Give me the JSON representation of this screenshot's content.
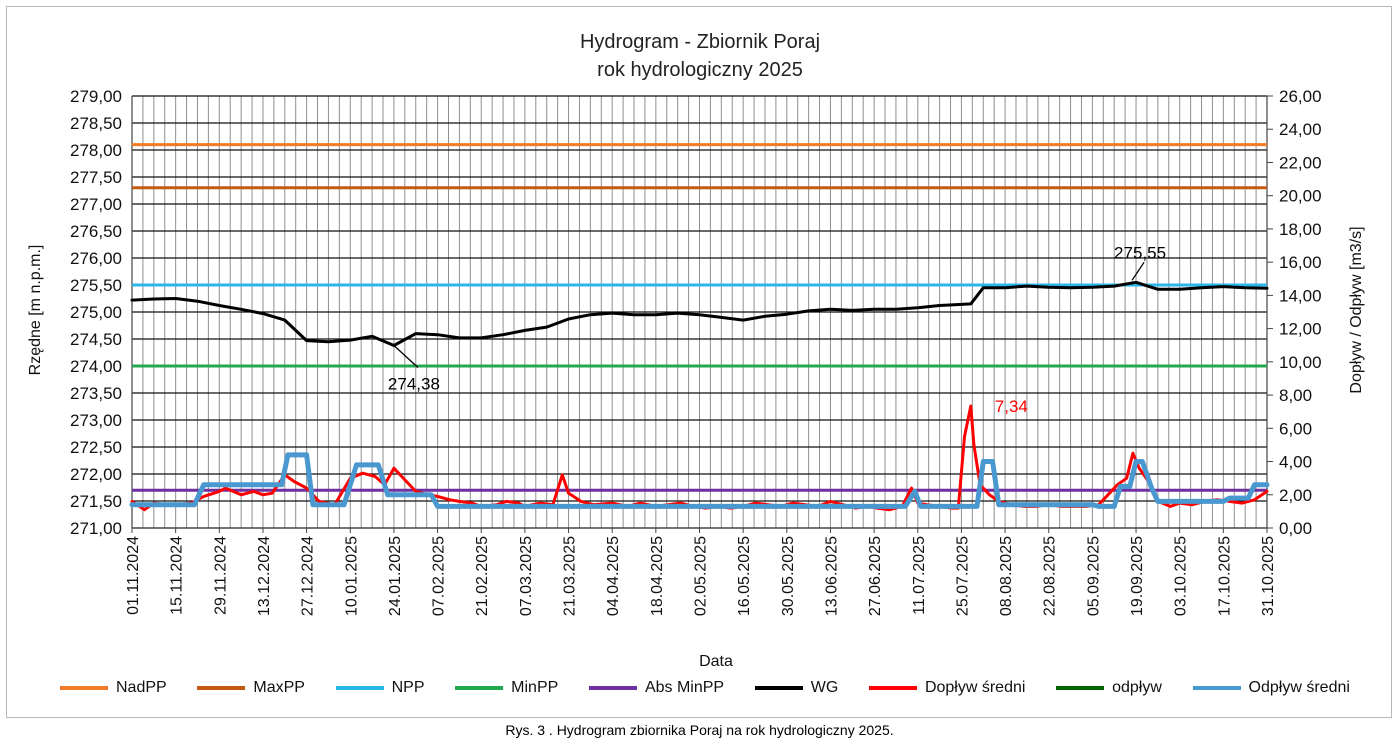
{
  "chart_data": {
    "type": "line",
    "title": "Hydrogram - Zbiornik Poraj",
    "subtitle": "rok hydrologiczny 2025",
    "xlabel": "Data",
    "ylabel_left": "Rzędne [m n.p.m.]",
    "ylabel_right": "Dopływ / Odpływ [m3/s]",
    "ylim_left": [
      271.0,
      279.0
    ],
    "ylim_right": [
      0.0,
      26.0
    ],
    "yticks_left": [
      "271,00",
      "271,50",
      "272,00",
      "272,50",
      "273,00",
      "273,50",
      "274,00",
      "274,50",
      "275,00",
      "275,50",
      "276,00",
      "276,50",
      "277,00",
      "277,50",
      "278,00",
      "278,50",
      "279,00"
    ],
    "yticks_right": [
      "0,00",
      "2,00",
      "4,00",
      "6,00",
      "8,00",
      "10,00",
      "12,00",
      "14,00",
      "16,00",
      "18,00",
      "20,00",
      "22,00",
      "24,00",
      "26,00"
    ],
    "xticks": [
      "01.11.2024",
      "15.11.2024",
      "29.11.2024",
      "13.12.2024",
      "27.12.2024",
      "10.01.2025",
      "24.01.2025",
      "07.02.2025",
      "21.02.2025",
      "07.03.2025",
      "21.03.2025",
      "04.04.2025",
      "18.04.2025",
      "02.05.2025",
      "16.05.2025",
      "30.05.2025",
      "13.06.2025",
      "27.06.2025",
      "11.07.2025",
      "25.07.2025",
      "08.08.2025",
      "22.08.2025",
      "05.09.2025",
      "19.09.2025",
      "03.10.2025",
      "17.10.2025",
      "31.10.2025"
    ],
    "x_start": "01.11.2024",
    "x_end": "31.10.2025",
    "grid": true,
    "legend_position": "bottom",
    "reference_lines": [
      {
        "name": "NadPP",
        "value": 278.1,
        "color": "#f07a25"
      },
      {
        "name": "MaxPP",
        "value": 277.3,
        "color": "#c65911"
      },
      {
        "name": "NPP",
        "value": 275.5,
        "color": "#2bb6ea"
      },
      {
        "name": "MinPP",
        "value": 274.0,
        "color": "#22a94f"
      },
      {
        "name": "Abs MinPP",
        "value": 271.7,
        "color": "#7030a0"
      }
    ],
    "series": [
      {
        "name": "WG",
        "axis": "left",
        "color": "#000000",
        "x": [
          "01.11.2024",
          "08.11.2024",
          "15.11.2024",
          "22.11.2024",
          "29.11.2024",
          "06.12.2024",
          "13.12.2024",
          "20.12.2024",
          "27.12.2024",
          "03.01.2025",
          "10.01.2025",
          "17.01.2025",
          "24.01.2025",
          "31.01.2025",
          "07.02.2025",
          "14.02.2025",
          "21.02.2025",
          "28.02.2025",
          "07.03.2025",
          "14.03.2025",
          "21.03.2025",
          "28.03.2025",
          "04.04.2025",
          "11.04.2025",
          "18.04.2025",
          "25.04.2025",
          "02.05.2025",
          "09.05.2025",
          "16.05.2025",
          "23.05.2025",
          "30.05.2025",
          "06.06.2025",
          "13.06.2025",
          "20.06.2025",
          "27.06.2025",
          "04.07.2025",
          "11.07.2025",
          "18.07.2025",
          "25.07.2025",
          "28.07.2025",
          "01.08.2025",
          "08.08.2025",
          "15.08.2025",
          "22.08.2025",
          "29.08.2025",
          "05.09.2025",
          "12.09.2025",
          "19.09.2025",
          "26.09.2025",
          "03.10.2025",
          "10.10.2025",
          "17.10.2025",
          "24.10.2025",
          "31.10.2025"
        ],
        "values": [
          275.22,
          275.24,
          275.25,
          275.2,
          275.12,
          275.05,
          274.97,
          274.85,
          274.47,
          274.45,
          274.48,
          274.55,
          274.38,
          274.6,
          274.58,
          274.52,
          274.52,
          274.58,
          274.66,
          274.72,
          274.87,
          274.95,
          274.98,
          274.95,
          274.95,
          274.98,
          274.95,
          274.9,
          274.85,
          274.92,
          274.96,
          275.02,
          275.05,
          275.03,
          275.05,
          275.05,
          275.08,
          275.12,
          275.14,
          275.15,
          275.45,
          275.45,
          275.48,
          275.46,
          275.45,
          275.46,
          275.48,
          275.55,
          275.42,
          275.42,
          275.45,
          275.47,
          275.45,
          275.44
        ]
      },
      {
        "name": "Dopływ średni",
        "axis": "right",
        "color": "#ff0000",
        "x": [
          "01.11.2024",
          "05.11.2024",
          "08.11.2024",
          "12.11.2024",
          "15.11.2024",
          "20.11.2024",
          "24.11.2024",
          "29.11.2024",
          "01.12.2024",
          "06.12.2024",
          "10.12.2024",
          "13.12.2024",
          "16.12.2024",
          "20.12.2024",
          "23.12.2024",
          "27.12.2024",
          "31.12.2024",
          "05.01.2025",
          "10.01.2025",
          "14.01.2025",
          "18.01.2025",
          "21.01.2025",
          "24.01.2025",
          "28.01.2025",
          "31.01.2025",
          "04.02.2025",
          "07.02.2025",
          "11.02.2025",
          "14.02.2025",
          "18.02.2025",
          "21.02.2025",
          "26.02.2025",
          "01.03.2025",
          "05.03.2025",
          "07.03.2025",
          "12.03.2025",
          "16.03.2025",
          "19.03.2025",
          "21.03.2025",
          "25.03.2025",
          "29.03.2025",
          "04.04.2025",
          "09.04.2025",
          "13.04.2025",
          "18.04.2025",
          "22.04.2025",
          "26.04.2025",
          "30.04.2025",
          "04.05.2025",
          "08.05.2025",
          "12.05.2025",
          "16.05.2025",
          "20.05.2025",
          "24.05.2025",
          "28.05.2025",
          "01.06.2025",
          "05.06.2025",
          "09.06.2025",
          "13.06.2025",
          "17.06.2025",
          "21.06.2025",
          "25.06.2025",
          "28.06.2025",
          "02.07.2025",
          "06.07.2025",
          "09.07.2025",
          "11.07.2025",
          "14.07.2025",
          "18.07.2025",
          "22.07.2025",
          "24.07.2025",
          "26.07.2025",
          "28.07.2025",
          "29.07.2025",
          "31.07.2025",
          "03.08.2025",
          "06.08.2025",
          "10.08.2025",
          "14.08.2025",
          "18.08.2025",
          "22.08.2025",
          "26.08.2025",
          "30.08.2025",
          "03.09.2025",
          "07.09.2025",
          "10.09.2025",
          "13.09.2025",
          "16.09.2025",
          "18.09.2025",
          "20.09.2025",
          "23.09.2025",
          "26.09.2025",
          "30.09.2025",
          "03.10.2025",
          "07.10.2025",
          "11.10.2025",
          "15.10.2025",
          "19.10.2025",
          "23.10.2025",
          "27.10.2025",
          "31.10.2025"
        ],
        "values": [
          1.6,
          1.1,
          1.5,
          1.4,
          1.4,
          1.5,
          1.9,
          2.2,
          2.4,
          2.0,
          2.2,
          2.0,
          2.1,
          3.2,
          2.8,
          2.4,
          1.6,
          1.4,
          3.0,
          3.3,
          3.1,
          2.6,
          3.6,
          2.8,
          2.2,
          2.0,
          1.9,
          1.7,
          1.6,
          1.5,
          1.3,
          1.4,
          1.6,
          1.5,
          1.3,
          1.5,
          1.4,
          3.2,
          2.1,
          1.6,
          1.4,
          1.5,
          1.3,
          1.5,
          1.3,
          1.4,
          1.5,
          1.3,
          1.2,
          1.3,
          1.2,
          1.3,
          1.5,
          1.4,
          1.3,
          1.5,
          1.4,
          1.3,
          1.6,
          1.4,
          1.2,
          1.3,
          1.2,
          1.1,
          1.3,
          2.4,
          1.5,
          1.4,
          1.3,
          1.2,
          1.2,
          5.5,
          7.34,
          5.0,
          2.6,
          2.0,
          1.6,
          1.4,
          1.3,
          1.3,
          1.4,
          1.3,
          1.3,
          1.3,
          1.4,
          2.0,
          2.6,
          3.0,
          4.5,
          3.6,
          2.8,
          1.6,
          1.3,
          1.5,
          1.4,
          1.6,
          1.7,
          1.6,
          1.5,
          1.7,
          2.2
        ]
      },
      {
        "name": "odpływ",
        "axis": "right",
        "color": "#006400",
        "x": [
          "01.11.2024",
          "21.11.2024",
          "24.11.2024",
          "19.12.2024",
          "21.12.2024",
          "27.12.2024",
          "29.12.2024",
          "08.01.2025",
          "12.01.2025",
          "19.01.2025",
          "22.01.2025",
          "05.02.2025",
          "07.02.2025",
          "05.07.2025",
          "07.07.2025",
          "10.07.2025",
          "12.07.2025",
          "30.07.2025",
          "01.08.2025",
          "04.08.2025",
          "06.08.2025",
          "05.09.2025",
          "07.09.2025",
          "12.09.2025",
          "14.09.2025",
          "17.09.2025",
          "19.09.2025",
          "21.09.2025",
          "24.09.2025",
          "26.09.2025",
          "17.10.2025",
          "19.10.2025",
          "25.10.2025",
          "27.10.2025",
          "31.10.2025"
        ],
        "values": [
          1.4,
          1.4,
          2.6,
          2.6,
          4.4,
          4.4,
          1.4,
          1.4,
          3.8,
          3.8,
          2.0,
          2.0,
          1.3,
          1.3,
          1.3,
          2.2,
          1.3,
          1.3,
          4.0,
          4.0,
          1.4,
          1.4,
          1.3,
          1.3,
          2.5,
          2.5,
          4.0,
          4.0,
          2.4,
          1.6,
          1.6,
          1.8,
          1.8,
          2.6,
          2.6
        ]
      },
      {
        "name": "Odpływ  średni",
        "axis": "right",
        "color": "#4a98d0",
        "x": [
          "01.11.2024",
          "21.11.2024",
          "24.11.2024",
          "19.12.2024",
          "21.12.2024",
          "27.12.2024",
          "29.12.2024",
          "08.01.2025",
          "12.01.2025",
          "19.01.2025",
          "22.01.2025",
          "05.02.2025",
          "07.02.2025",
          "05.07.2025",
          "07.07.2025",
          "10.07.2025",
          "12.07.2025",
          "30.07.2025",
          "01.08.2025",
          "04.08.2025",
          "06.08.2025",
          "05.09.2025",
          "07.09.2025",
          "12.09.2025",
          "14.09.2025",
          "17.09.2025",
          "19.09.2025",
          "21.09.2025",
          "24.09.2025",
          "26.09.2025",
          "17.10.2025",
          "19.10.2025",
          "25.10.2025",
          "27.10.2025",
          "31.10.2025"
        ],
        "values": [
          1.4,
          1.4,
          2.6,
          2.6,
          4.4,
          4.4,
          1.4,
          1.4,
          3.8,
          3.8,
          2.0,
          2.0,
          1.3,
          1.3,
          1.3,
          2.2,
          1.3,
          1.3,
          4.0,
          4.0,
          1.4,
          1.4,
          1.3,
          1.3,
          2.5,
          2.5,
          4.0,
          4.0,
          2.4,
          1.6,
          1.6,
          1.8,
          1.8,
          2.6,
          2.6
        ]
      }
    ],
    "annotations": [
      {
        "text": "274,38",
        "x": "24.01.2025",
        "y": 274.38,
        "axis": "left",
        "color": "#000000"
      },
      {
        "text": "275,55",
        "x": "19.09.2025",
        "y": 275.55,
        "axis": "left",
        "color": "#000000"
      },
      {
        "text": "7,34",
        "x": "28.07.2025",
        "y": 7.34,
        "axis": "right",
        "color": "#ff0000"
      }
    ]
  },
  "legend": [
    {
      "name": "NadPP",
      "color": "#f07a25"
    },
    {
      "name": "MaxPP",
      "color": "#c65911"
    },
    {
      "name": "NPP",
      "color": "#2bb6ea"
    },
    {
      "name": "MinPP",
      "color": "#22a94f"
    },
    {
      "name": "Abs MinPP",
      "color": "#7030a0"
    },
    {
      "name": "WG",
      "color": "#000000"
    },
    {
      "name": "Dopływ średni",
      "color": "#ff0000"
    },
    {
      "name": "odpływ",
      "color": "#006400"
    },
    {
      "name": "Odpływ  średni",
      "color": "#4a98d0"
    }
  ],
  "caption": "Rys. 3 . Hydrogram zbiornika Poraj na rok hydrologiczny 2025."
}
